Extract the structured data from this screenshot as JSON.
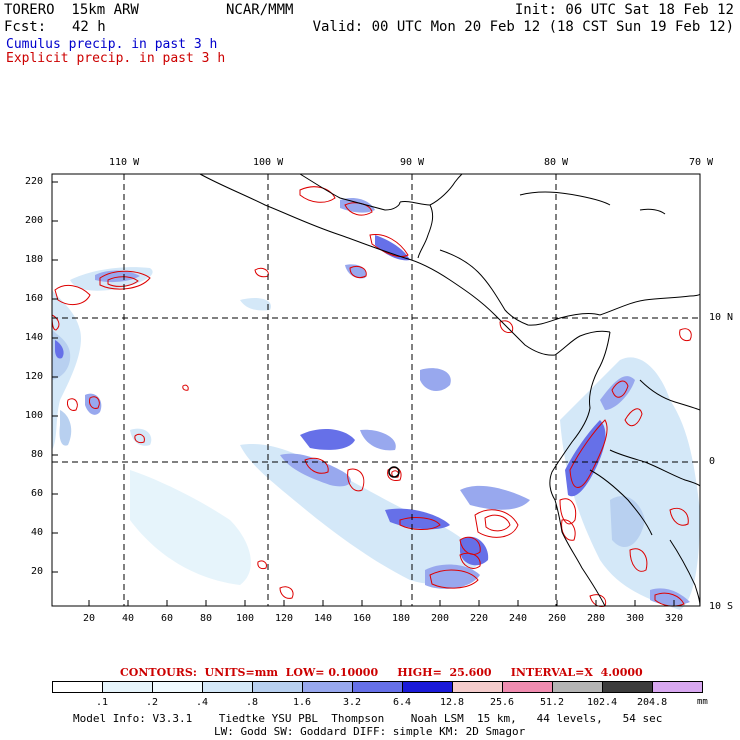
{
  "header": {
    "model": "TORERO  15km ARW",
    "org": "NCAR/MMM",
    "init": "Init: 06 UTC Sat 18 Feb 12",
    "fcst_label": "Fcst:",
    "fcst_value": "42 h",
    "valid": "Valid: 00 UTC Mon 20 Feb 12 (18 CST Sun 19 Feb 12)"
  },
  "legend": {
    "cumulus": "Cumulus precip. in past 3 h",
    "explicit": "Explicit precip. in past 3 h",
    "cumulus_color": "#0000cc",
    "explicit_color": "#cc0000"
  },
  "axes": {
    "top_lon": [
      "110 W",
      "100 W",
      "90 W",
      "80 W",
      "70 W"
    ],
    "right_lat": [
      "10 N",
      "0",
      "10 S"
    ],
    "y_ticks": [
      "220",
      "200",
      "180",
      "160",
      "140",
      "120",
      "100",
      "80",
      "60",
      "40",
      "20"
    ],
    "x_ticks": [
      "20",
      "40",
      "60",
      "80",
      "100",
      "120",
      "140",
      "160",
      "180",
      "200",
      "220",
      "240",
      "260",
      "280",
      "300",
      "320"
    ]
  },
  "contours_note": "CONTOURS:  UNITS=mm  LOW= 0.10000     HIGH=  25.600     INTERVAL=X  4.0000",
  "colorbar": {
    "labels": [
      ".1",
      ".2",
      ".4",
      ".8",
      "1.6",
      "3.2",
      "6.4",
      "12.8",
      "25.6",
      "51.2",
      "102.4",
      "204.8"
    ],
    "unit": "mm",
    "colors": [
      "#ffffff",
      "#e6f4fb",
      "#f0faff",
      "#d4e8f8",
      "#b8d0f0",
      "#98a8ee",
      "#6670e8",
      "#1a1ad8",
      "#f4cccc",
      "#f08cb0",
      "#b4b4b4",
      "#3c3c3c",
      "#d8a8f0"
    ]
  },
  "model_info": {
    "line1": "Model Info: V3.3.1    Tiedtke YSU PBL  Thompson    Noah LSM  15 km,   44 levels,   54 sec",
    "line2": "LW: Godd SW: Goddard DIFF: simple KM: 2D Smagor"
  }
}
